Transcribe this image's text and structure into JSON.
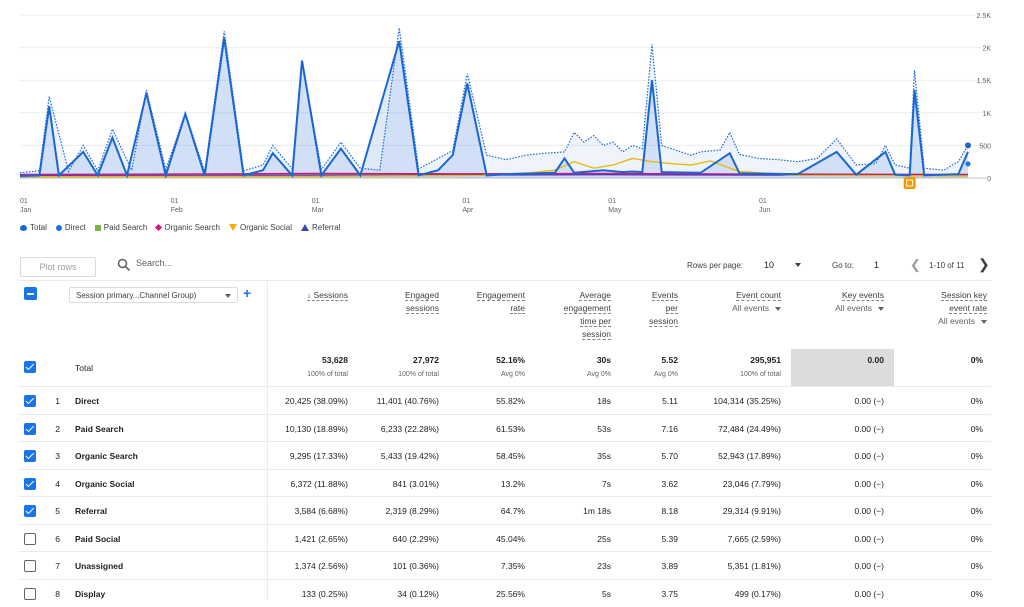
{
  "chart_data": {
    "type": "line",
    "x_range": [
      "2024-01-01",
      "2024-06-30"
    ],
    "x_tick_labels": [
      [
        "01",
        "Jan"
      ],
      [
        "01",
        "Feb"
      ],
      [
        "01",
        "Mar"
      ],
      [
        "01",
        "Apr"
      ],
      [
        "01",
        "May"
      ],
      [
        "01",
        "Jun"
      ]
    ],
    "y_tick_labels": [
      "2.5K",
      "2K",
      "1.5K",
      "1K",
      "500",
      "0"
    ],
    "ylim": [
      0,
      2500
    ],
    "series": [
      {
        "name": "Total",
        "style": "dotted",
        "color": "#1967d2",
        "points": [
          [
            0,
            80
          ],
          [
            4,
            110
          ],
          [
            6,
            1250
          ],
          [
            10,
            100
          ],
          [
            13,
            500
          ],
          [
            16,
            110
          ],
          [
            19,
            750
          ],
          [
            23,
            120
          ],
          [
            26,
            1350
          ],
          [
            30,
            130
          ],
          [
            34,
            1000
          ],
          [
            38,
            100
          ],
          [
            42,
            2250
          ],
          [
            46,
            110
          ],
          [
            50,
            200
          ],
          [
            52,
            500
          ],
          [
            56,
            140
          ],
          [
            58,
            1800
          ],
          [
            62,
            130
          ],
          [
            66,
            550
          ],
          [
            70,
            150
          ],
          [
            74,
            120
          ],
          [
            78,
            2300
          ],
          [
            82,
            140
          ],
          [
            86,
            300
          ],
          [
            89,
            420
          ],
          [
            92,
            1600
          ],
          [
            96,
            350
          ],
          [
            100,
            280
          ],
          [
            104,
            350
          ],
          [
            108,
            380
          ],
          [
            112,
            400
          ],
          [
            114,
            700
          ],
          [
            116,
            550
          ],
          [
            118,
            650
          ],
          [
            120,
            500
          ],
          [
            122,
            550
          ],
          [
            124,
            400
          ],
          [
            126,
            500
          ],
          [
            128,
            450
          ],
          [
            130,
            2050
          ],
          [
            132,
            500
          ],
          [
            134,
            450
          ],
          [
            138,
            350
          ],
          [
            140,
            400
          ],
          [
            144,
            430
          ],
          [
            146,
            700
          ],
          [
            148,
            360
          ],
          [
            152,
            300
          ],
          [
            156,
            280
          ],
          [
            160,
            250
          ],
          [
            164,
            300
          ],
          [
            168,
            600
          ],
          [
            172,
            200
          ],
          [
            176,
            220
          ],
          [
            178,
            500
          ],
          [
            180,
            200
          ],
          [
            183,
            150
          ],
          [
            184,
            1650
          ],
          [
            186,
            150
          ],
          [
            190,
            120
          ],
          [
            193,
            250
          ],
          [
            195,
            500
          ]
        ]
      },
      {
        "name": "Direct",
        "style": "solid-area",
        "color": "#1967d2",
        "points": [
          [
            0,
            30
          ],
          [
            4,
            40
          ],
          [
            6,
            1100
          ],
          [
            8,
            40
          ],
          [
            13,
            400
          ],
          [
            16,
            40
          ],
          [
            19,
            620
          ],
          [
            22,
            40
          ],
          [
            26,
            1300
          ],
          [
            30,
            40
          ],
          [
            34,
            980
          ],
          [
            38,
            40
          ],
          [
            42,
            2150
          ],
          [
            46,
            40
          ],
          [
            50,
            120
          ],
          [
            52,
            380
          ],
          [
            56,
            40
          ],
          [
            58,
            1800
          ],
          [
            62,
            40
          ],
          [
            66,
            450
          ],
          [
            70,
            40
          ],
          [
            78,
            2100
          ],
          [
            82,
            40
          ],
          [
            86,
            120
          ],
          [
            89,
            350
          ],
          [
            92,
            1450
          ],
          [
            96,
            40
          ],
          [
            100,
            60
          ],
          [
            106,
            70
          ],
          [
            110,
            80
          ],
          [
            112,
            300
          ],
          [
            114,
            80
          ],
          [
            120,
            120
          ],
          [
            124,
            90
          ],
          [
            126,
            100
          ],
          [
            128,
            90
          ],
          [
            130,
            1500
          ],
          [
            132,
            90
          ],
          [
            140,
            80
          ],
          [
            146,
            380
          ],
          [
            148,
            70
          ],
          [
            160,
            60
          ],
          [
            168,
            400
          ],
          [
            172,
            50
          ],
          [
            178,
            400
          ],
          [
            180,
            50
          ],
          [
            183,
            40
          ],
          [
            184,
            1350
          ],
          [
            186,
            40
          ],
          [
            193,
            60
          ],
          [
            195,
            400
          ]
        ]
      },
      {
        "name": "Paid Search",
        "style": "solid",
        "color": "#9aa0a6",
        "points": [
          [
            0,
            45
          ],
          [
            40,
            50
          ],
          [
            80,
            60
          ],
          [
            120,
            65
          ],
          [
            160,
            55
          ],
          [
            195,
            50
          ]
        ]
      },
      {
        "name": "Organic Search",
        "style": "solid",
        "color": "#d01884",
        "points": [
          [
            0,
            55
          ],
          [
            30,
            60
          ],
          [
            60,
            70
          ],
          [
            90,
            65
          ],
          [
            120,
            70
          ],
          [
            150,
            60
          ],
          [
            195,
            55
          ]
        ]
      },
      {
        "name": "Organic Social",
        "style": "solid",
        "color": "#e8b912",
        "points": [
          [
            0,
            20
          ],
          [
            60,
            25
          ],
          [
            95,
            40
          ],
          [
            105,
            80
          ],
          [
            110,
            120
          ],
          [
            114,
            250
          ],
          [
            118,
            150
          ],
          [
            122,
            200
          ],
          [
            126,
            300
          ],
          [
            130,
            250
          ],
          [
            134,
            220
          ],
          [
            138,
            200
          ],
          [
            142,
            260
          ],
          [
            148,
            100
          ],
          [
            160,
            40
          ],
          [
            195,
            30
          ]
        ]
      },
      {
        "name": "Referral",
        "style": "solid",
        "color": "#5e35b1",
        "points": [
          [
            0,
            35
          ],
          [
            40,
            40
          ],
          [
            80,
            45
          ],
          [
            120,
            50
          ],
          [
            160,
            45
          ],
          [
            195,
            40
          ]
        ]
      }
    ]
  },
  "legend": [
    {
      "label": "Total",
      "icon": "total-pin-icon",
      "color": "#1967d2"
    },
    {
      "label": "Direct",
      "icon": "circle-icon",
      "color": "#1a73e8"
    },
    {
      "label": "Paid Search",
      "icon": "square-icon",
      "color": "#7cb342"
    },
    {
      "label": "Organic Search",
      "icon": "diamond-icon",
      "color": "#d01884"
    },
    {
      "label": "Organic Social",
      "icon": "triangle-down-icon",
      "color": "#f9ab00"
    },
    {
      "label": "Referral",
      "icon": "triangle-up-icon",
      "color": "#3949ab"
    }
  ],
  "annotation_marker": {
    "day": 183,
    "color": "#f29900",
    "icon": "annotation-icon"
  },
  "toolbar": {
    "plot_rows": "Plot rows",
    "search_placeholder": "Search...",
    "rows_per_page_label": "Rows per page:",
    "rows_per_page": "10",
    "goto_label": "Go to:",
    "goto_value": "1",
    "page_range": "1-10 of 11"
  },
  "dimension_select": "Session primary...Channel Group)",
  "columns": [
    {
      "key": "sessions",
      "label": [
        "↓ Sessions"
      ],
      "sub": ""
    },
    {
      "key": "engaged",
      "label": [
        "Engaged",
        "sessions"
      ],
      "sub": ""
    },
    {
      "key": "rate",
      "label": [
        "Engagement",
        "rate"
      ],
      "sub": ""
    },
    {
      "key": "avg",
      "label": [
        "Average",
        "engagement",
        "time per",
        "session"
      ],
      "sub": ""
    },
    {
      "key": "eps",
      "label": [
        "Events",
        "per",
        "session"
      ],
      "sub": ""
    },
    {
      "key": "ec",
      "label": [
        "Event count"
      ],
      "sub": "All events"
    },
    {
      "key": "ke",
      "label": [
        "Key events"
      ],
      "sub": "All events"
    },
    {
      "key": "sker",
      "label": [
        "Session key",
        "event rate"
      ],
      "sub": "All events"
    }
  ],
  "totals": {
    "label": "Total",
    "values": [
      "53,628",
      "27,972",
      "52.16%",
      "30s",
      "5.52",
      "295,951",
      "0.00",
      "0%"
    ],
    "subs": [
      "100% of total",
      "100% of total",
      "Avg 0%",
      "Avg 0%",
      "Avg 0%",
      "100% of total",
      "",
      ""
    ]
  },
  "rows": [
    {
      "checked": true,
      "idx": "1",
      "name": "Direct",
      "values": [
        "20,425 (38.09%)",
        "11,401 (40.76%)",
        "55.82%",
        "18s",
        "5.11",
        "104,314 (35.25%)",
        "0.00 (−)",
        "0%"
      ]
    },
    {
      "checked": true,
      "idx": "2",
      "name": "Paid Search",
      "values": [
        "10,130 (18.89%)",
        "6,233 (22.28%)",
        "61.53%",
        "53s",
        "7.16",
        "72,484 (24.49%)",
        "0.00 (−)",
        "0%"
      ]
    },
    {
      "checked": true,
      "idx": "3",
      "name": "Organic Search",
      "values": [
        "9,295 (17.33%)",
        "5,433 (19.42%)",
        "58.45%",
        "35s",
        "5.70",
        "52,943 (17.89%)",
        "0.00 (−)",
        "0%"
      ]
    },
    {
      "checked": true,
      "idx": "4",
      "name": "Organic Social",
      "values": [
        "6,372 (11.88%)",
        "841 (3.01%)",
        "13.2%",
        "7s",
        "3.62",
        "23,046 (7.79%)",
        "0.00 (−)",
        "0%"
      ]
    },
    {
      "checked": true,
      "idx": "5",
      "name": "Referral",
      "values": [
        "3,584 (6.68%)",
        "2,319 (8.29%)",
        "64.7%",
        "1m 18s",
        "8.18",
        "29,314 (9.91%)",
        "0.00 (−)",
        "0%"
      ]
    },
    {
      "checked": false,
      "idx": "6",
      "name": "Paid Social",
      "values": [
        "1,421 (2.65%)",
        "640 (2.29%)",
        "45.04%",
        "25s",
        "5.39",
        "7,665 (2.59%)",
        "0.00 (−)",
        "0%"
      ]
    },
    {
      "checked": false,
      "idx": "7",
      "name": "Unassigned",
      "values": [
        "1,374 (2.56%)",
        "101 (0.36%)",
        "7.35%",
        "23s",
        "3.89",
        "5,351 (1.81%)",
        "0.00 (−)",
        "0%"
      ]
    },
    {
      "checked": false,
      "idx": "8",
      "name": "Display",
      "values": [
        "133 (0.25%)",
        "34 (0.12%)",
        "25.56%",
        "5s",
        "3.75",
        "499 (0.17%)",
        "0.00 (−)",
        "0%"
      ]
    }
  ]
}
